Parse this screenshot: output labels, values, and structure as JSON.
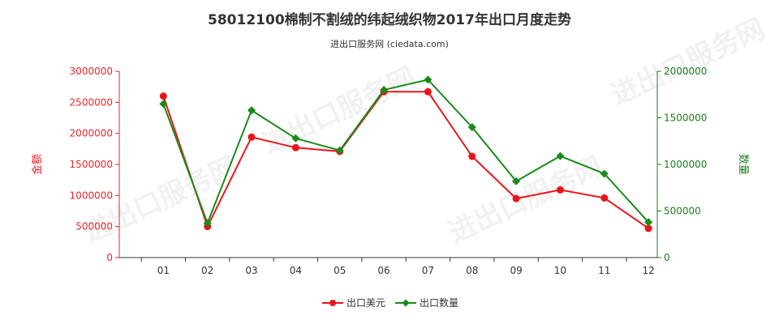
{
  "chart_data": {
    "type": "line",
    "title": "58012100棉制不割绒的纬起绒织物2017年出口月度走势",
    "subtitle": "进出口服务网 (ciedata.com)",
    "watermark": "进出口服务网",
    "categories": [
      "01",
      "02",
      "03",
      "04",
      "05",
      "06",
      "07",
      "08",
      "09",
      "10",
      "11",
      "12"
    ],
    "y_left": {
      "label": "金额",
      "ylim": [
        0,
        3000000
      ],
      "ticks": [
        "0",
        "500000",
        "1000000",
        "1500000",
        "2000000",
        "2500000",
        "3000000"
      ],
      "color": "#e8262d"
    },
    "y_right": {
      "label": "数量",
      "ylim": [
        0,
        2000000
      ],
      "ticks": [
        "0",
        "500000",
        "1000000",
        "1500000",
        "2000000"
      ],
      "color": "#1a7f1a"
    },
    "series": [
      {
        "name": "出口美元",
        "axis": "left",
        "color": "#e8161b",
        "marker": "circle",
        "values": [
          2600000,
          500000,
          1940000,
          1770000,
          1710000,
          2670000,
          2670000,
          1630000,
          950000,
          1090000,
          960000,
          470000
        ]
      },
      {
        "name": "出口数量",
        "axis": "right",
        "color": "#1a8a1a",
        "marker": "diamond",
        "values": [
          1650000,
          370000,
          1580000,
          1280000,
          1150000,
          1800000,
          1910000,
          1400000,
          820000,
          1090000,
          900000,
          380000
        ]
      }
    ],
    "legend": "bottom-center",
    "grid": false
  }
}
